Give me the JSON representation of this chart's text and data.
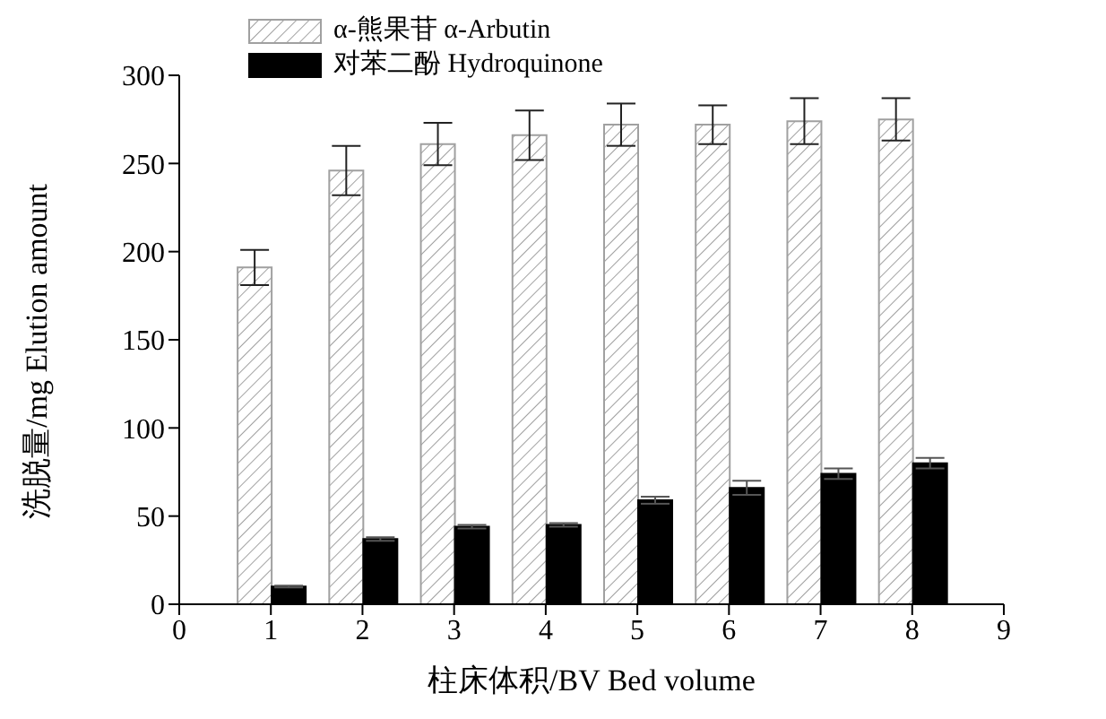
{
  "chart_data": {
    "type": "bar",
    "xlabel": "柱床体积/BV  Bed volume",
    "ylabel": "洗脱量/mg  Elution amount",
    "x": [
      1,
      2,
      3,
      4,
      5,
      6,
      7,
      8
    ],
    "series": [
      {
        "name": "α-熊果苷  α-Arbutin",
        "color": "#a0a0a0",
        "values": [
          191,
          246,
          261,
          266,
          272,
          272,
          274,
          275
        ],
        "errors": [
          10,
          14,
          12,
          14,
          12,
          11,
          13,
          12
        ]
      },
      {
        "name": "对苯二酚  Hydroquinone",
        "color": "#000000",
        "values": [
          10,
          37,
          44,
          45,
          59,
          66,
          74,
          80
        ],
        "errors": [
          0.5,
          1,
          1,
          1,
          2,
          4,
          3,
          3
        ]
      }
    ],
    "xlim": [
      0,
      9
    ],
    "xticks": [
      0,
      1,
      2,
      3,
      4,
      5,
      6,
      7,
      8,
      9
    ],
    "ylim": [
      0,
      300
    ],
    "yticks": [
      0,
      50,
      100,
      150,
      200,
      250,
      300
    ],
    "grid": false,
    "legend": "top left"
  }
}
